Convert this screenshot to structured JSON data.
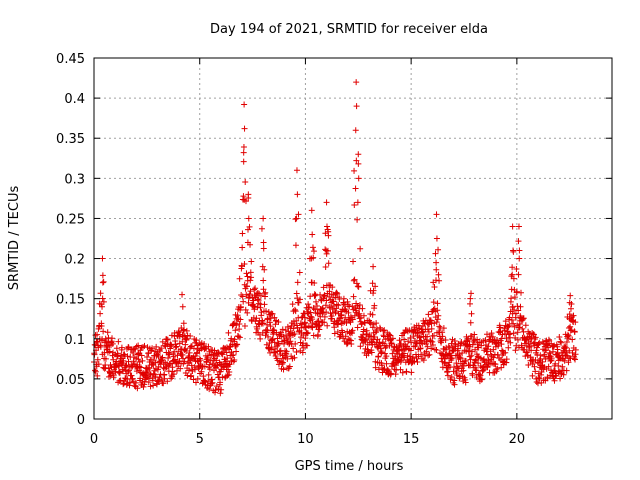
{
  "chart_data": {
    "type": "scatter",
    "title": "Day 194 of 2021, SRMTID for receiver elda",
    "xlabel": "GPS time / hours",
    "ylabel": "SRMTID / TECUs",
    "xlim": [
      0,
      24.5
    ],
    "ylim": [
      0,
      0.45
    ],
    "x_ticks": [
      0,
      5,
      10,
      15,
      20
    ],
    "y_ticks": [
      0,
      0.05,
      0.1,
      0.15,
      0.2,
      0.25,
      0.3,
      0.35,
      0.4,
      0.45
    ],
    "x_tick_labels": [
      "0",
      "5",
      "10",
      "15",
      "20"
    ],
    "y_tick_labels": [
      "0",
      "0.05",
      "0.1",
      "0.15",
      "0.2",
      "0.25",
      "0.3",
      "0.35",
      "0.4",
      "0.45"
    ],
    "grid": true,
    "marker": "+",
    "series": [
      {
        "name": "SRMTID",
        "color": "#e00000",
        "profile_note": "approximate envelope of the dense scatter",
        "baseline": [
          [
            0.0,
            0.075
          ],
          [
            0.3,
            0.085
          ],
          [
            1.0,
            0.07
          ],
          [
            2.0,
            0.065
          ],
          [
            3.0,
            0.065
          ],
          [
            4.0,
            0.085
          ],
          [
            5.0,
            0.07
          ],
          [
            6.0,
            0.055
          ],
          [
            6.5,
            0.09
          ],
          [
            7.0,
            0.13
          ],
          [
            7.5,
            0.14
          ],
          [
            8.0,
            0.12
          ],
          [
            9.0,
            0.085
          ],
          [
            10.0,
            0.11
          ],
          [
            11.0,
            0.14
          ],
          [
            12.0,
            0.12
          ],
          [
            12.5,
            0.11
          ],
          [
            13.0,
            0.095
          ],
          [
            14.0,
            0.08
          ],
          [
            15.0,
            0.085
          ],
          [
            16.0,
            0.11
          ],
          [
            17.0,
            0.07
          ],
          [
            18.0,
            0.07
          ],
          [
            19.0,
            0.085
          ],
          [
            20.0,
            0.11
          ],
          [
            21.0,
            0.07
          ],
          [
            22.0,
            0.075
          ],
          [
            22.8,
            0.1
          ]
        ],
        "peaks": [
          {
            "x": 0.4,
            "y": 0.2
          },
          {
            "x": 4.2,
            "y": 0.14
          },
          {
            "x": 7.1,
            "y": 0.392
          },
          {
            "x": 7.3,
            "y": 0.28
          },
          {
            "x": 8.0,
            "y": 0.25
          },
          {
            "x": 9.6,
            "y": 0.31
          },
          {
            "x": 10.3,
            "y": 0.26
          },
          {
            "x": 11.0,
            "y": 0.27
          },
          {
            "x": 12.4,
            "y": 0.42
          },
          {
            "x": 12.5,
            "y": 0.33
          },
          {
            "x": 13.2,
            "y": 0.19
          },
          {
            "x": 16.2,
            "y": 0.255
          },
          {
            "x": 17.8,
            "y": 0.15
          },
          {
            "x": 19.8,
            "y": 0.24
          },
          {
            "x": 20.1,
            "y": 0.24
          },
          {
            "x": 22.5,
            "y": 0.145
          }
        ],
        "x_range": [
          0.0,
          22.8
        ]
      }
    ]
  }
}
